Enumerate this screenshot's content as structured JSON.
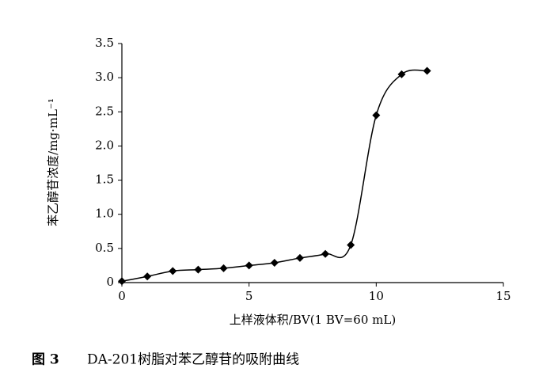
{
  "chart_data": {
    "type": "line",
    "x_label": "上样液体积/BV(1 BV=60 mL)",
    "y_label": "苯乙醇苷浓度/mg·mL⁻¹",
    "figure_label": "图 3",
    "caption": "DA-201树脂对苯乙醇苷的吸附曲线",
    "x": [
      0,
      1,
      2,
      3,
      4,
      5,
      6,
      7,
      8,
      9,
      10,
      11,
      12
    ],
    "series": [
      {
        "color": "#000000",
        "values": [
          0.02,
          0.09,
          0.17,
          0.19,
          0.21,
          0.25,
          0.29,
          0.36,
          0.42,
          0.55,
          2.45,
          3.05,
          3.1
        ]
      }
    ],
    "xlim": [
      0,
      15
    ],
    "xticks": [
      0,
      5,
      10,
      15
    ],
    "ylim": [
      0,
      3.5
    ],
    "yticks": [
      0,
      0.5,
      {
        "value": 1,
        "label": "1.0"
      },
      1.5,
      {
        "value": 2,
        "label": "2.0"
      },
      2.5,
      {
        "value": 3,
        "label": "3.0"
      },
      3.5
    ]
  }
}
